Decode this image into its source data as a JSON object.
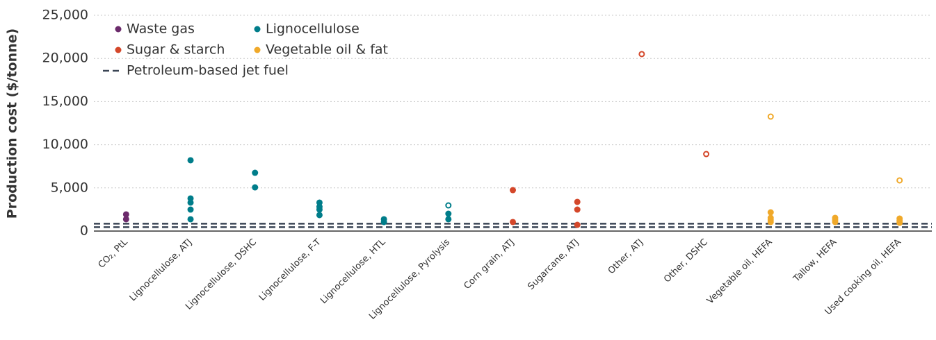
{
  "chart_data": {
    "type": "scatter",
    "ylabel": "Production cost ($/tonne)",
    "categories": [
      "CO₂, PtL",
      "Lignocellulose, ATJ",
      "Lignocellulose, DSHC",
      "Lignocellulose, F-T",
      "Lignocellulose, HTL",
      "Lignocellulose, Pyrolysis",
      "Corn grain, ATJ",
      "Sugarcane, ATJ",
      "Other, ATJ",
      "Other, DSHC",
      "Vegetable oil, HEFA",
      "Tallow, HEFA",
      "Used cooking oil, HEFA"
    ],
    "ylim": [
      0,
      25000
    ],
    "yticks": [
      0,
      {
        "value": 5000,
        "label": "5,000"
      },
      {
        "value": 10000,
        "label": "10,000"
      },
      {
        "value": 15000,
        "label": "15,000"
      },
      {
        "value": 20000,
        "label": "20,000"
      },
      {
        "value": 25000,
        "label": "25,000"
      }
    ],
    "grid": true,
    "legend": "upper left",
    "series": [
      {
        "name": "Waste gas",
        "color": "#6b2a6b",
        "points": [
          {
            "category": "CO₂, PtL",
            "value": 1930,
            "open": false
          },
          {
            "category": "CO₂, PtL",
            "value": 1370,
            "open": false
          }
        ]
      },
      {
        "name": "Lignocellulose",
        "color": "#007d8a",
        "points": [
          {
            "category": "Lignocellulose, ATJ",
            "value": 8200,
            "open": false
          },
          {
            "category": "Lignocellulose, ATJ",
            "value": 3780,
            "open": false
          },
          {
            "category": "Lignocellulose, ATJ",
            "value": 3300,
            "open": false
          },
          {
            "category": "Lignocellulose, ATJ",
            "value": 2490,
            "open": false
          },
          {
            "category": "Lignocellulose, ATJ",
            "value": 1370,
            "open": false
          },
          {
            "category": "Lignocellulose, DSHC",
            "value": 6750,
            "open": false
          },
          {
            "category": "Lignocellulose, DSHC",
            "value": 5060,
            "open": false
          },
          {
            "category": "Lignocellulose, F-T",
            "value": 3300,
            "open": false
          },
          {
            "category": "Lignocellulose, F-T",
            "value": 2810,
            "open": false
          },
          {
            "category": "Lignocellulose, F-T",
            "value": 2490,
            "open": false
          },
          {
            "category": "Lignocellulose, F-T",
            "value": 1850,
            "open": false
          },
          {
            "category": "Lignocellulose, HTL",
            "value": 1370,
            "open": false
          },
          {
            "category": "Lignocellulose, HTL",
            "value": 1050,
            "open": false
          },
          {
            "category": "Lignocellulose, Pyrolysis",
            "value": 2970,
            "open": true
          },
          {
            "category": "Lignocellulose, Pyrolysis",
            "value": 2010,
            "open": false
          },
          {
            "category": "Lignocellulose, Pyrolysis",
            "value": 1370,
            "open": false
          }
        ]
      },
      {
        "name": "Sugar & starch",
        "color": "#d4472a",
        "points": [
          {
            "category": "Corn grain, ATJ",
            "value": 4740,
            "open": false
          },
          {
            "category": "Corn grain, ATJ",
            "value": 1050,
            "open": false
          },
          {
            "category": "Sugarcane, ATJ",
            "value": 3380,
            "open": false
          },
          {
            "category": "Sugarcane, ATJ",
            "value": 2490,
            "open": false
          },
          {
            "category": "Sugarcane, ATJ",
            "value": 720,
            "open": false
          },
          {
            "category": "Other, ATJ",
            "value": 20500,
            "open": true
          },
          {
            "category": "Other, DSHC",
            "value": 8920,
            "open": true
          }
        ]
      },
      {
        "name": "Vegetable oil & fat",
        "color": "#f0a92a",
        "points": [
          {
            "category": "Vegetable oil, HEFA",
            "value": 13260,
            "open": true
          },
          {
            "category": "Vegetable oil, HEFA",
            "value": 2170,
            "open": false
          },
          {
            "category": "Vegetable oil, HEFA",
            "value": 1530,
            "open": false
          },
          {
            "category": "Vegetable oil, HEFA",
            "value": 1290,
            "open": false
          },
          {
            "category": "Vegetable oil, HEFA",
            "value": 1050,
            "open": false
          },
          {
            "category": "Tallow, HEFA",
            "value": 1530,
            "open": false
          },
          {
            "category": "Tallow, HEFA",
            "value": 1290,
            "open": false
          },
          {
            "category": "Tallow, HEFA",
            "value": 1050,
            "open": false
          },
          {
            "category": "Used cooking oil, HEFA",
            "value": 5870,
            "open": true
          },
          {
            "category": "Used cooking oil, HEFA",
            "value": 1450,
            "open": false
          },
          {
            "category": "Used cooking oil, HEFA",
            "value": 1210,
            "open": false
          },
          {
            "category": "Used cooking oil, HEFA",
            "value": 960,
            "open": false
          }
        ]
      }
    ],
    "reference_lines": {
      "name": "Petroleum-based jet fuel",
      "color": "#3a4555",
      "values": [
        450,
        850
      ]
    }
  }
}
